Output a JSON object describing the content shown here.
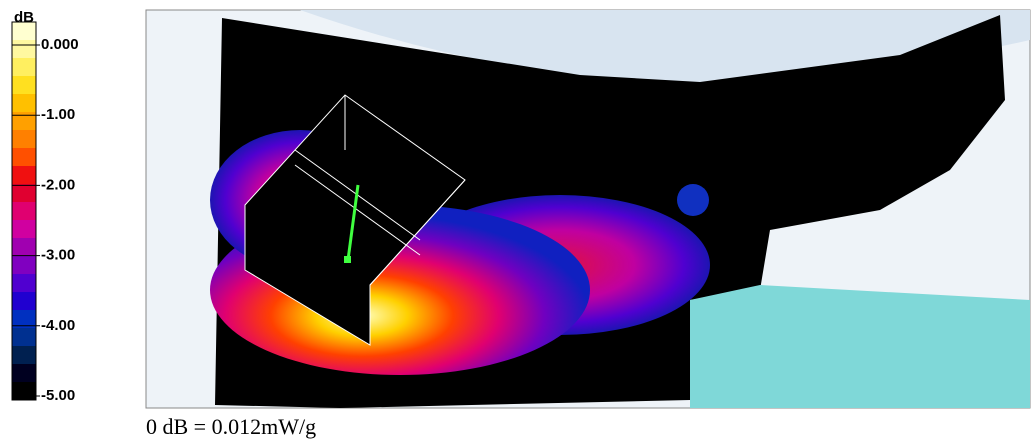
{
  "colorbar": {
    "unit": "dB",
    "lim": [
      0,
      -5
    ],
    "ticks": [
      {
        "value": 0,
        "label": "0.000"
      },
      {
        "value": -1,
        "label": "-1.00"
      },
      {
        "value": -2,
        "label": "-2.00"
      },
      {
        "value": -3,
        "label": "-3.00"
      },
      {
        "value": -4,
        "label": "-4.00"
      },
      {
        "value": -5,
        "label": "-5.00"
      }
    ],
    "colors": [
      "#ffffd0",
      "#fff8a0",
      "#ffef60",
      "#ffe020",
      "#ffc000",
      "#ffa000",
      "#ff8000",
      "#ff5000",
      "#f01010",
      "#e00030",
      "#e00070",
      "#d000a0",
      "#a000b0",
      "#8000c0",
      "#5000d0",
      "#2000d0",
      "#0030c0",
      "#003090",
      "#002050",
      "#000020",
      "#000000"
    ]
  },
  "caption": "0 dB = 0.012mW/g"
}
